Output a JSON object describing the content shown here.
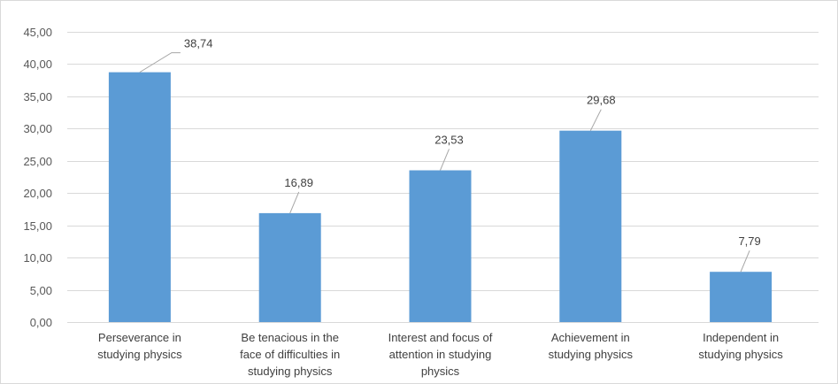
{
  "chart_data": {
    "type": "bar",
    "categories": [
      [
        "Perseverance in",
        "studying physics"
      ],
      [
        "Be tenacious in the",
        "face of difficulties in",
        "studying physics"
      ],
      [
        "Interest and focus of",
        "attention in studying",
        "physics"
      ],
      [
        "Achievement in",
        "studying physics"
      ],
      [
        "Independent in",
        "studying physics"
      ]
    ],
    "values": [
      38.74,
      16.89,
      23.53,
      29.68,
      7.79
    ],
    "value_labels": [
      "38,74",
      "16,89",
      "23,53",
      "29,68",
      "7,79"
    ],
    "y_ticks": [
      0,
      5,
      10,
      15,
      20,
      25,
      30,
      35,
      40,
      45
    ],
    "y_tick_labels": [
      "0,00",
      "5,00",
      "10,00",
      "15,00",
      "20,00",
      "25,00",
      "30,00",
      "35,00",
      "40,00",
      "45,00"
    ],
    "ylim": [
      0,
      45
    ],
    "title": "",
    "xlabel": "",
    "ylabel": "",
    "grid": true,
    "legend": "none",
    "bar_color": "#5b9bd5",
    "gridline_color": "#d9d9d9",
    "text_color": "#404040"
  }
}
